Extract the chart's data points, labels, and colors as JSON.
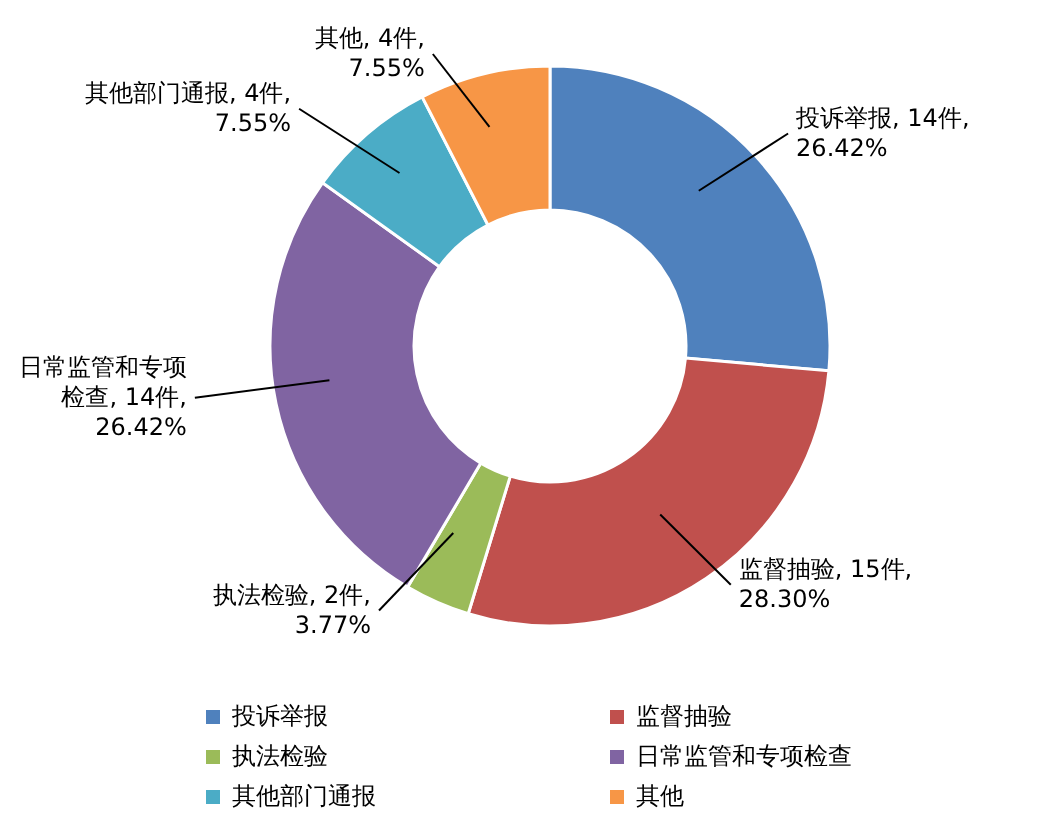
{
  "chart_data": {
    "type": "donut",
    "categories": [
      "投诉举报",
      "监督抽验",
      "执法检验",
      "日常监管和专项检查",
      "其他部门通报",
      "其他"
    ],
    "values": [
      14,
      15,
      2,
      14,
      4,
      4
    ],
    "colors": [
      "#4f81bd",
      "#c0504d",
      "#9bbb59",
      "#8064a2",
      "#4bacc6",
      "#f79646"
    ],
    "value_labels": [
      "投诉举报, 14件, 26.42%",
      "监督抽验, 15件, 28.30%",
      "执法检验, 2件, 3.77%",
      "日常监管和专项检查, 14件, 26.42%",
      "其他部门通报, 4件, 7.55%",
      "其他, 4件, 7.55%"
    ],
    "legend": "bottom"
  }
}
